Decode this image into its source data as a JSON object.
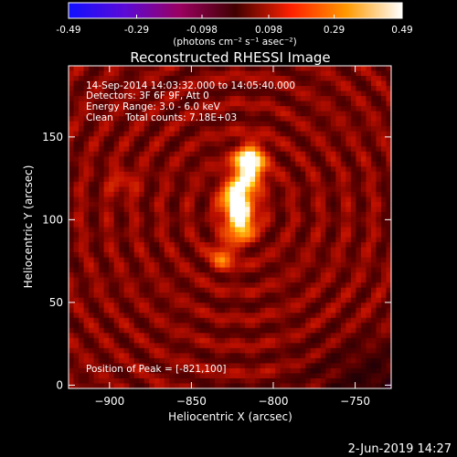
{
  "colorbar": {
    "ticks": [
      "-0.49",
      "-0.29",
      "-0.098",
      "0.098",
      "0.29",
      "0.49"
    ],
    "tick_values": [
      -0.49,
      -0.29,
      -0.098,
      0.098,
      0.29,
      0.49
    ],
    "range": [
      -0.49,
      0.49
    ],
    "units": "(photons cm⁻² s⁻¹ asec⁻²)",
    "colors": [
      "#1010ff",
      "#5a0ad8",
      "#9a0060",
      "#400000",
      "#ff2000",
      "#ff9a00",
      "#ffffff"
    ]
  },
  "title": "Reconstructed RHESSI Image",
  "info": {
    "time_range": "14-Sep-2014 14:03:32.000 to 14:05:40.000",
    "detectors": "Detectors: 3F 6F 9F, Att 0",
    "energy_range": "Energy Range: 3.0 - 6.0 keV",
    "clean_line": "Clean    Total counts: 7.18E+03",
    "peak": "Position of Peak = [-821,100]"
  },
  "axes": {
    "xlabel": "Heliocentric X (arcsec)",
    "ylabel": "Heliocentric Y (arcsec)",
    "xlim": [
      -925,
      -728
    ],
    "ylim": [
      -2,
      193
    ],
    "xticks": [
      -900,
      -850,
      -800,
      -750
    ],
    "xtick_labels": [
      "−900",
      "−850",
      "−800",
      "−750"
    ],
    "yticks": [
      0,
      50,
      100,
      150
    ],
    "ytick_labels": [
      "0",
      "50",
      "100",
      "150"
    ]
  },
  "footer": {
    "timestamp": "2-Jun-2019 14:27"
  },
  "image": {
    "peak_xy": [
      -821,
      100
    ],
    "source_blobs": [
      {
        "x": -820,
        "y": 101,
        "sx": 6,
        "sy": 9,
        "amp": 1.0
      },
      {
        "x": -816,
        "y": 127,
        "sx": 7,
        "sy": 7,
        "amp": 0.78
      },
      {
        "x": -814,
        "y": 138,
        "sx": 6,
        "sy": 6,
        "amp": 0.7
      },
      {
        "x": -824,
        "y": 113,
        "sx": 6,
        "sy": 6,
        "amp": 0.62
      },
      {
        "x": -831,
        "y": 78,
        "sx": 5,
        "sy": 6,
        "amp": 0.45
      },
      {
        "x": -892,
        "y": 122,
        "sx": 5,
        "sy": 5,
        "amp": 0.25
      }
    ]
  }
}
